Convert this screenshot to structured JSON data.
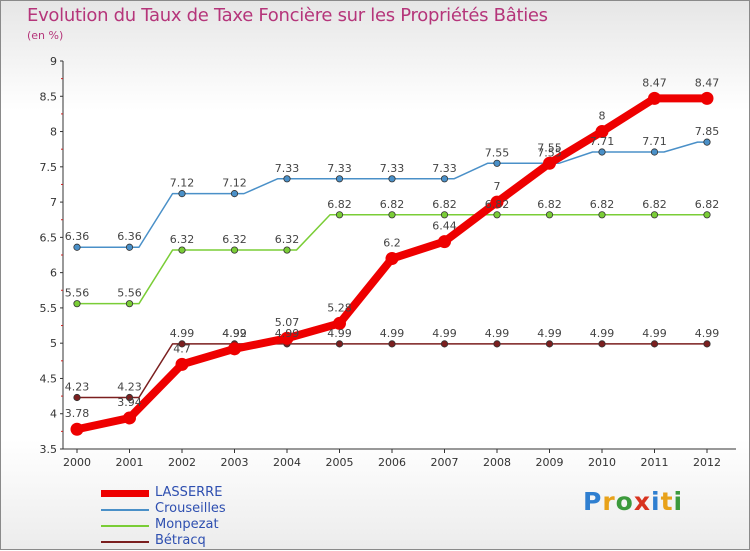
{
  "chart_data": {
    "type": "line",
    "title": "Evolution du Taux de Taxe Foncière sur les Propriétés Bâties",
    "unit_label": "(en %)",
    "xlabel": "",
    "ylabel": "",
    "categories": [
      "2000",
      "2001",
      "2002",
      "2003",
      "2004",
      "2005",
      "2006",
      "2007",
      "2008",
      "2009",
      "2010",
      "2011",
      "2012"
    ],
    "ylim": [
      3.5,
      9
    ],
    "yticks": [
      3.5,
      4,
      4.5,
      5,
      5.5,
      6,
      6.5,
      7,
      7.5,
      8,
      8.5,
      9
    ],
    "ytick_labels": [
      "3.5",
      "4",
      "4.5",
      "5",
      "5.5",
      "6",
      "6.5",
      "7",
      "7.5",
      "8",
      "8.5",
      "9"
    ],
    "series": [
      {
        "name": "LASSERRE",
        "color": "#ee0000",
        "values": [
          3.78,
          3.94,
          4.7,
          4.92,
          5.07,
          5.28,
          6.2,
          6.44,
          7.0,
          7.55,
          8.0,
          8.47,
          8.47
        ],
        "labels": [
          "3.78",
          "3.94",
          "4.7",
          "4.92",
          "5.07",
          "5.28",
          "6.2",
          "6.44",
          "7",
          "7.55",
          "8",
          "8.47",
          "8.47"
        ]
      },
      {
        "name": "Crouseilles",
        "color": "#4a90c8",
        "values": [
          6.36,
          6.36,
          7.12,
          7.12,
          7.33,
          7.33,
          7.33,
          7.33,
          7.55,
          7.55,
          7.71,
          7.71,
          7.85
        ],
        "labels": [
          "6.36",
          "6.36",
          "7.12",
          "7.12",
          "7.33",
          "7.33",
          "7.33",
          "7.33",
          "7.55",
          "7.55",
          "7.71",
          "7.71",
          "7.85"
        ]
      },
      {
        "name": "Monpezat",
        "color": "#7acd36",
        "values": [
          5.56,
          5.56,
          6.32,
          6.32,
          6.32,
          6.82,
          6.82,
          6.82,
          6.82,
          6.82,
          6.82,
          6.82,
          6.82
        ],
        "labels": [
          "5.56",
          "5.56",
          "6.32",
          "6.32",
          "6.32",
          "6.82",
          "6.82",
          "6.82",
          "6.82",
          "6.82",
          "6.82",
          "6.82",
          "6.82"
        ]
      },
      {
        "name": "Bétracq",
        "color": "#7b1f1f",
        "values": [
          4.23,
          4.23,
          4.99,
          4.99,
          4.99,
          4.99,
          4.99,
          4.99,
          4.99,
          4.99,
          4.99,
          4.99,
          4.99
        ],
        "labels": [
          "4.23",
          "4.23",
          "4.99",
          "4.99",
          "4.99",
          "4.99",
          "4.99",
          "4.99",
          "4.99",
          "4.99",
          "4.99",
          "4.99",
          "4.99"
        ]
      }
    ],
    "legend_position": "bottom-left",
    "grid": false
  },
  "branding": {
    "logo_letters": [
      "P",
      "r",
      "o",
      "x",
      "i",
      "t",
      "i"
    ],
    "logo_colors": [
      "#2f7fd0",
      "#e8a21a",
      "#3c9a3c",
      "#d8331f",
      "#2f7fd0",
      "#e8a21a",
      "#3c9a3c"
    ]
  }
}
